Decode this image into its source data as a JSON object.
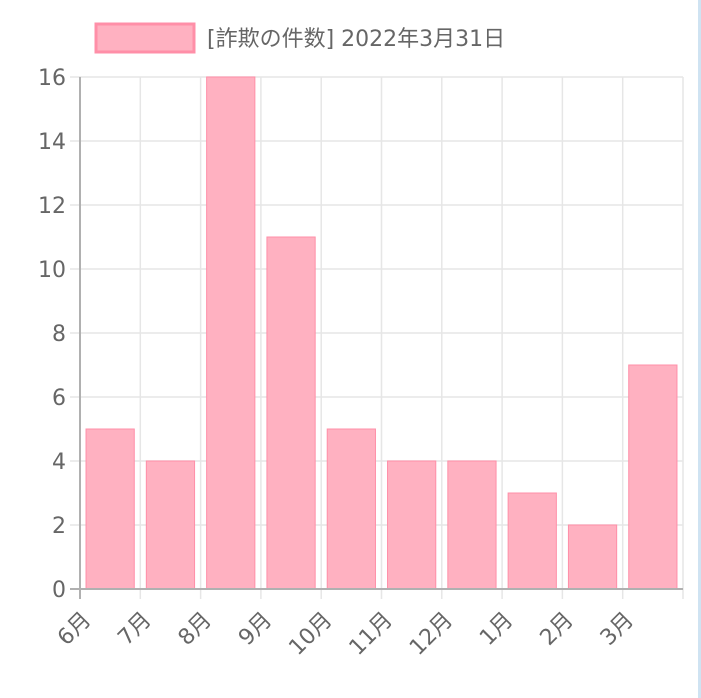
{
  "chart_data": {
    "type": "bar",
    "legend": {
      "label": "[詐欺の件数] 2022年3月31日",
      "position": "top"
    },
    "categories": [
      "6月",
      "7月",
      "8月",
      "9月",
      "10月",
      "11月",
      "12月",
      "1月",
      "2月",
      "3月"
    ],
    "series": [
      {
        "name": "[詐欺の件数] 2022年3月31日",
        "values": [
          5,
          4,
          16,
          11,
          5,
          4,
          4,
          3,
          2,
          7
        ]
      }
    ],
    "ylim": [
      0,
      16
    ],
    "yticks": [
      0,
      2,
      4,
      6,
      8,
      10,
      12,
      14,
      16
    ],
    "grid": true,
    "colors": {
      "bar_fill": "#ffb1c1",
      "bar_border": "#ff8fa8",
      "grid": "#e6e6e6",
      "axis": "#b0b0b0",
      "text": "#666666"
    }
  }
}
